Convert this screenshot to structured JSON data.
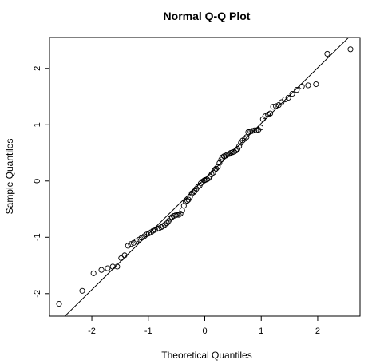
{
  "chart_data": {
    "type": "scatter",
    "title": "Normal Q-Q Plot",
    "xlabel": "Theoretical Quantiles",
    "ylabel": "Sample Quantiles",
    "xlim": [
      -2.75,
      2.75
    ],
    "ylim": [
      -2.4,
      2.55
    ],
    "xticks": [
      -2,
      -1,
      0,
      1,
      2
    ],
    "yticks": [
      -2,
      -1,
      0,
      1,
      2
    ],
    "xtick_labels": [
      "-2",
      "-1",
      "0",
      "1",
      "2"
    ],
    "ytick_labels": [
      "-2",
      "-1",
      "0",
      "1",
      "2"
    ],
    "grid": false,
    "legend": "none",
    "marker": "open-circle",
    "reference_line": {
      "slope": 0.985,
      "intercept": 0.04
    },
    "x": [
      -2.58,
      -2.17,
      -1.97,
      -1.83,
      -1.72,
      -1.63,
      -1.55,
      -1.48,
      -1.42,
      -1.36,
      -1.31,
      -1.26,
      -1.21,
      -1.16,
      -1.12,
      -1.07,
      -1.03,
      -0.99,
      -0.95,
      -0.91,
      -0.88,
      -0.84,
      -0.81,
      -0.77,
      -0.74,
      -0.71,
      -0.67,
      -0.64,
      -0.61,
      -0.58,
      -0.55,
      -0.52,
      -0.49,
      -0.46,
      -0.43,
      -0.4,
      -0.37,
      -0.34,
      -0.31,
      -0.29,
      -0.26,
      -0.23,
      -0.2,
      -0.18,
      -0.15,
      -0.12,
      -0.09,
      -0.07,
      -0.04,
      -0.01,
      0.01,
      0.04,
      0.07,
      0.09,
      0.12,
      0.15,
      0.18,
      0.2,
      0.23,
      0.26,
      0.29,
      0.31,
      0.34,
      0.37,
      0.4,
      0.43,
      0.46,
      0.49,
      0.52,
      0.55,
      0.58,
      0.61,
      0.64,
      0.67,
      0.71,
      0.74,
      0.77,
      0.81,
      0.84,
      0.88,
      0.91,
      0.95,
      0.99,
      1.03,
      1.07,
      1.12,
      1.16,
      1.21,
      1.26,
      1.31,
      1.36,
      1.42,
      1.48,
      1.55,
      1.63,
      1.72,
      1.83,
      1.97,
      2.17,
      2.58
    ],
    "y": [
      -2.18,
      -1.95,
      -1.64,
      -1.58,
      -1.55,
      -1.52,
      -1.52,
      -1.37,
      -1.32,
      -1.15,
      -1.12,
      -1.1,
      -1.07,
      -1.04,
      -1.01,
      -0.98,
      -0.95,
      -0.93,
      -0.91,
      -0.88,
      -0.86,
      -0.85,
      -0.84,
      -0.82,
      -0.8,
      -0.78,
      -0.75,
      -0.71,
      -0.67,
      -0.64,
      -0.62,
      -0.61,
      -0.6,
      -0.6,
      -0.58,
      -0.52,
      -0.44,
      -0.36,
      -0.35,
      -0.33,
      -0.28,
      -0.22,
      -0.2,
      -0.18,
      -0.14,
      -0.1,
      -0.08,
      -0.04,
      -0.01,
      0.01,
      0.02,
      0.03,
      0.05,
      0.08,
      0.12,
      0.15,
      0.2,
      0.22,
      0.25,
      0.32,
      0.38,
      0.42,
      0.44,
      0.45,
      0.47,
      0.48,
      0.5,
      0.51,
      0.52,
      0.54,
      0.57,
      0.62,
      0.68,
      0.72,
      0.75,
      0.78,
      0.87,
      0.88,
      0.89,
      0.9,
      0.9,
      0.91,
      0.95,
      1.1,
      1.15,
      1.18,
      1.2,
      1.32,
      1.33,
      1.35,
      1.4,
      1.45,
      1.48,
      1.55,
      1.62,
      1.68,
      1.7,
      1.72,
      2.26,
      2.34
    ]
  }
}
